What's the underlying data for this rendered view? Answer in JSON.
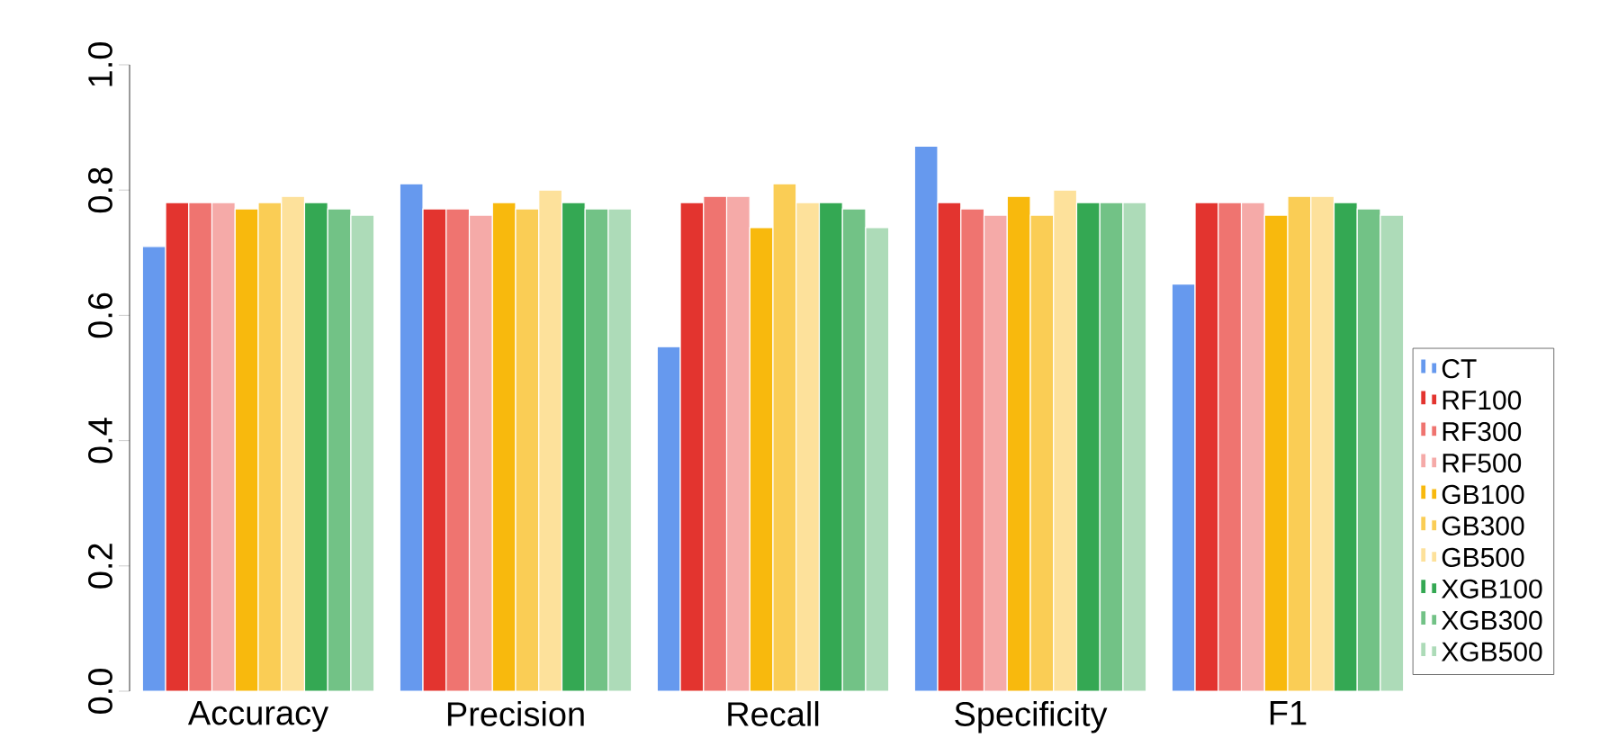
{
  "chart_data": {
    "type": "bar",
    "categories": [
      "Accuracy",
      "Precision",
      "Recall",
      "Specificity",
      "F1"
    ],
    "ylim": [
      0,
      1
    ],
    "yticks": [
      {
        "value": 0,
        "label": "0.0"
      },
      0.2,
      0.4,
      0.6,
      0.8,
      {
        "value": 1,
        "label": "1.0"
      }
    ],
    "legend": "right",
    "series": [
      {
        "name": "CT",
        "color": "#6699ee",
        "values": [
          0.71,
          0.81,
          0.55,
          0.87,
          0.65
        ]
      },
      {
        "name": "RF100",
        "color": "#e3342f",
        "values": [
          0.78,
          0.77,
          0.78,
          0.78,
          0.78
        ]
      },
      {
        "name": "RF300",
        "color": "#ef7470",
        "values": [
          0.78,
          0.77,
          0.79,
          0.77,
          0.78
        ]
      },
      {
        "name": "RF500",
        "color": "#f5aaa8",
        "values": [
          0.78,
          0.76,
          0.79,
          0.76,
          0.78
        ]
      },
      {
        "name": "GB100",
        "color": "#f8b90d",
        "values": [
          0.77,
          0.78,
          0.74,
          0.79,
          0.76
        ]
      },
      {
        "name": "GB300",
        "color": "#facd55",
        "values": [
          0.78,
          0.77,
          0.81,
          0.76,
          0.79
        ]
      },
      {
        "name": "GB500",
        "color": "#fde19b",
        "values": [
          0.79,
          0.8,
          0.78,
          0.8,
          0.79
        ]
      },
      {
        "name": "XGB100",
        "color": "#34a853",
        "values": [
          0.78,
          0.78,
          0.78,
          0.78,
          0.78
        ]
      },
      {
        "name": "XGB300",
        "color": "#72c286",
        "values": [
          0.77,
          0.77,
          0.77,
          0.78,
          0.77
        ]
      },
      {
        "name": "XGB500",
        "color": "#addbb8",
        "values": [
          0.76,
          0.77,
          0.74,
          0.78,
          0.76
        ]
      }
    ]
  }
}
